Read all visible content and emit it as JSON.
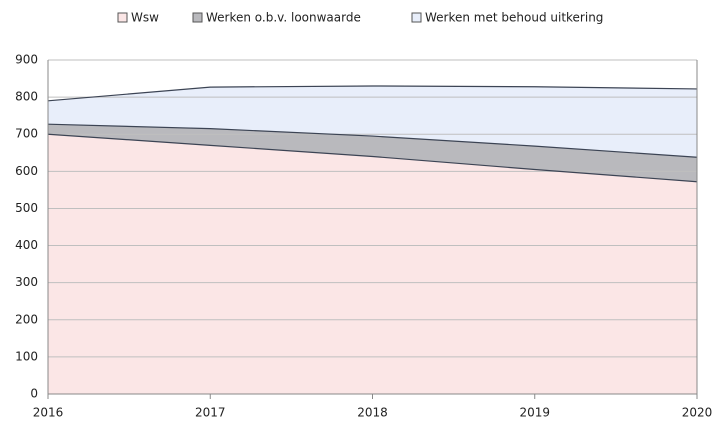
{
  "chart_data": {
    "type": "area",
    "stacked": true,
    "categories": [
      "2016",
      "2017",
      "2018",
      "2019",
      "2020"
    ],
    "series": [
      {
        "name": "Wsw",
        "color": "#fbe6e6",
        "values": [
          700,
          670,
          640,
          605,
          572
        ]
      },
      {
        "name": "Werken o.b.v. loonwaarde",
        "color": "#b9b9bd",
        "values": [
          27,
          45,
          55,
          63,
          66
        ]
      },
      {
        "name": "Werken met behoud uitkering",
        "color": "#e8eefa",
        "values": [
          63,
          112,
          135,
          160,
          184
        ]
      }
    ],
    "ylim": [
      0,
      900
    ],
    "yticks": [
      0,
      100,
      200,
      300,
      400,
      500,
      600,
      700,
      800,
      900
    ],
    "grid": true,
    "legend": "top"
  }
}
